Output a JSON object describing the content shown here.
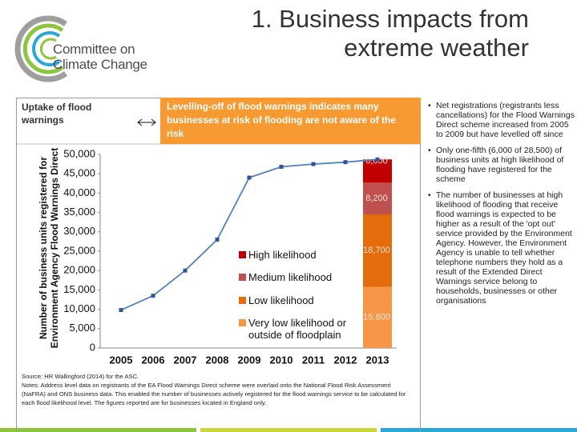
{
  "logo": {
    "lines": [
      "Committee on",
      "Climate Change"
    ]
  },
  "title": "1. Business impacts from extreme weather",
  "panel": {
    "heading": "Uptake of flood warnings",
    "callout": "Levelling-off of flood warnings indicates many businesses at risk of flooding are not aware of the risk"
  },
  "chart_data": [
    {
      "type": "line",
      "y_label": "Number of business units registered for Environment Agency Flood Warnings Direct",
      "categories": [
        "2005",
        "2006",
        "2007",
        "2008",
        "2009",
        "2010",
        "2011",
        "2012",
        "2013"
      ],
      "values": [
        9800,
        13500,
        20000,
        28000,
        44000,
        46800,
        47500,
        48000,
        48700
      ],
      "color": "#4f81bd",
      "ylim": [
        0,
        50000
      ],
      "yticks": [
        0,
        {
          "value": 5000,
          "label": "5,000"
        },
        {
          "value": 10000,
          "label": "10,000"
        },
        {
          "value": 15000,
          "label": "15,000"
        },
        {
          "value": 20000,
          "label": "20,000"
        },
        {
          "value": 25000,
          "label": "25,000"
        },
        {
          "value": 30000,
          "label": "30,000"
        },
        {
          "value": 35000,
          "label": "35,000"
        },
        {
          "value": 40000,
          "label": "40,000"
        },
        {
          "value": 45000,
          "label": "45,000"
        },
        {
          "value": 50000,
          "label": "50,000"
        }
      ]
    },
    {
      "type": "bar",
      "stacked": true,
      "series": [
        {
          "name": "High likelihood",
          "color": "#c00000",
          "values": [
            null,
            null,
            null,
            null,
            null,
            null,
            null,
            null,
            6000
          ],
          "value_labels": [
            null,
            null,
            null,
            null,
            null,
            null,
            null,
            null,
            "6,000"
          ]
        },
        {
          "name": "Medium likelihood",
          "color": "#c0504d",
          "values": [
            null,
            null,
            null,
            null,
            null,
            null,
            null,
            null,
            8200
          ],
          "value_labels": [
            null,
            null,
            null,
            null,
            null,
            null,
            null,
            null,
            "8,200"
          ]
        },
        {
          "name": "Low likelihood",
          "color": "#e46c0a",
          "values": [
            null,
            null,
            null,
            null,
            null,
            null,
            null,
            null,
            18700
          ],
          "value_labels": [
            null,
            null,
            null,
            null,
            null,
            null,
            null,
            null,
            "18,700"
          ]
        },
        {
          "name": "Very low likelihood or outside of floodplain",
          "color": "#f79646",
          "values": [
            null,
            null,
            null,
            null,
            null,
            null,
            null,
            null,
            15800
          ],
          "value_labels": [
            null,
            null,
            null,
            null,
            null,
            null,
            null,
            null,
            "15,800"
          ]
        }
      ]
    }
  ],
  "notes": [
    "Source: HR Wallingford (2014) for the ASC.",
    "Notes: Address level data on registrants of the EA Flood Warnings Direct scheme were overlaid onto the National Flood Risk Assessment (NaFRA) and ONS business data. This enabled the number of businesses actively registered for the flood warnings service to be calculated for each flood likelihood level. The figures reported are for businesses located in England only."
  ],
  "bullets": [
    "Net registrations (registrants less cancellations) for the Flood Warnings Direct scheme increased from 2005 to 2009 but have levelled off since",
    "Only one-fifth (6,000 of 28,500) of business units at high likelihood of flooding have registered for the scheme",
    "The number of businesses at high likelihood of flooding that receive flood warnings is expected to be higher as a result of the 'opt out' service provided by the Environment Agency. However, the Environment Agency is unable to tell whether telephone numbers they hold as a result of the Extended Direct Warnings service belong to households, businesses or other organisations"
  ]
}
